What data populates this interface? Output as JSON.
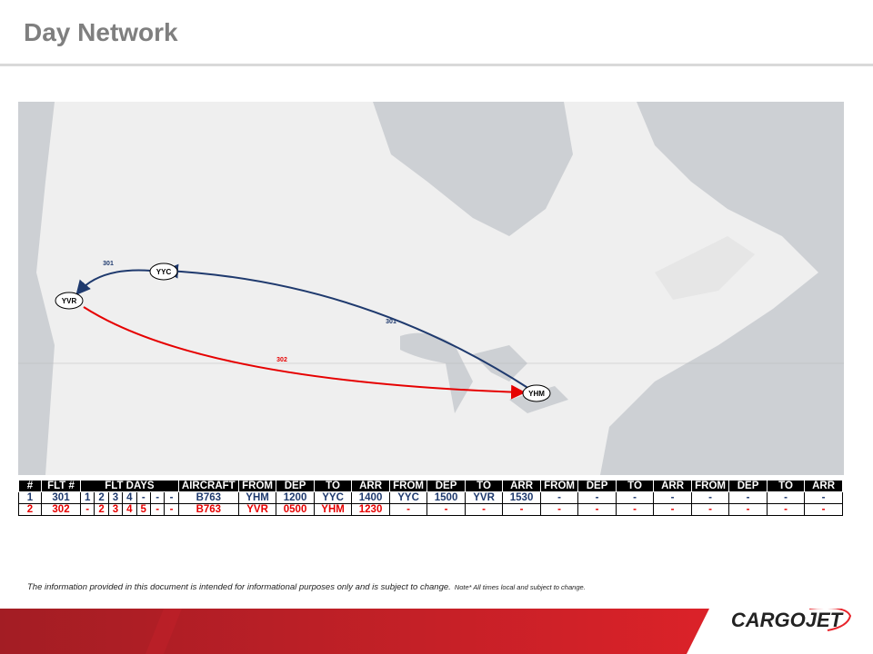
{
  "header": {
    "title": "Day Network"
  },
  "map": {
    "nodes": [
      {
        "label": "YVR"
      },
      {
        "label": "YYC"
      },
      {
        "label": "YHM"
      }
    ],
    "routes": [
      {
        "label": "301"
      },
      {
        "label": "301"
      },
      {
        "label": "302"
      }
    ]
  },
  "table": {
    "columns": [
      "#",
      "FLT #",
      "FLT DAYS",
      "AIRCRAFT",
      "FROM",
      "DEP",
      "TO",
      "ARR",
      "FROM",
      "DEP",
      "TO",
      "ARR",
      "FROM",
      "DEP",
      "TO",
      "ARR",
      "FROM",
      "DEP",
      "TO",
      "ARR"
    ],
    "rows": [
      [
        "1",
        "301",
        "1",
        "2",
        "3",
        "4",
        "-",
        "-",
        "-",
        "B763",
        "YHM",
        "1200",
        "YYC",
        "1400",
        "YYC",
        "1500",
        "YVR",
        "1530",
        "-",
        "-",
        "-",
        "-",
        "-",
        "-",
        "-",
        "-"
      ],
      [
        "2",
        "302",
        "-",
        "2",
        "3",
        "4",
        "5",
        "-",
        "-",
        "B763",
        "YVR",
        "0500",
        "YHM",
        "1230",
        "-",
        "-",
        "-",
        "-",
        "-",
        "-",
        "-",
        "-",
        "-",
        "-",
        "-",
        "-"
      ]
    ]
  },
  "footer": {
    "disclaimer": "The information provided in this document is intended for informational purposes only and is subject to change.",
    "note": "Note* All times local and subject to change."
  },
  "logo": {
    "text": "CARGOJET"
  }
}
